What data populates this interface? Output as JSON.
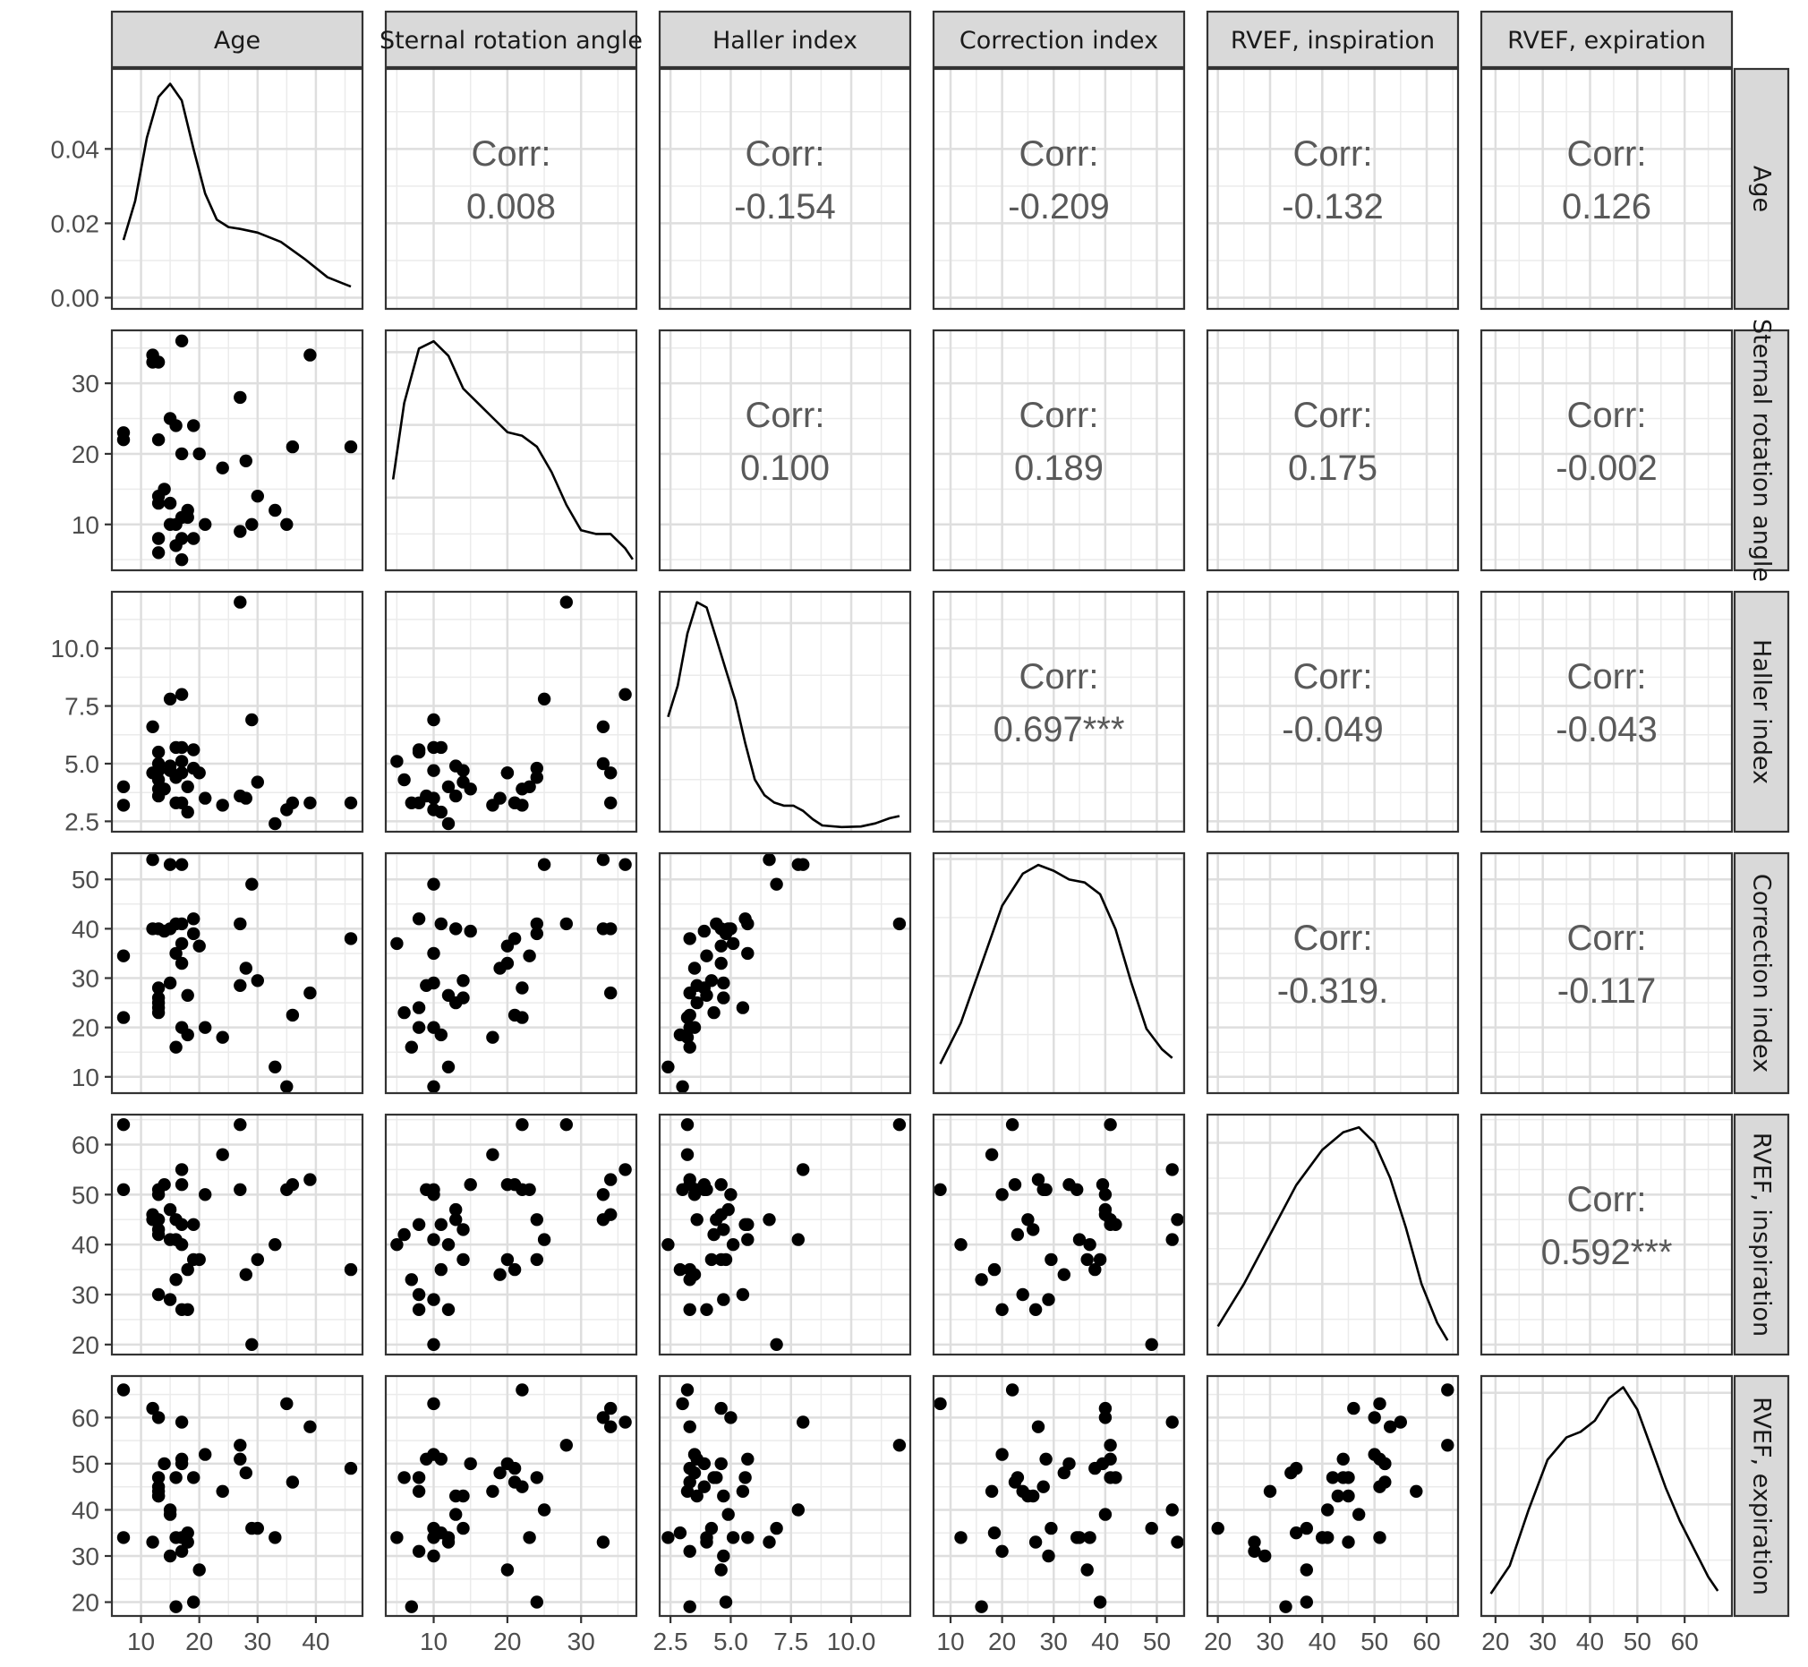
{
  "chart_data": {
    "type": "scatter",
    "variables": [
      "Age",
      "Sternal rotation angle",
      "Haller index",
      "Correction index",
      "RVEF, inspiration",
      "RVEF, expiration"
    ],
    "diagonal_type": "density",
    "upper_type": "correlation",
    "lower_type": "scatter",
    "corr_label": "Corr:",
    "correlations": [
      [
        "",
        "0.008",
        "-0.154",
        "-0.209",
        "-0.132",
        "0.126"
      ],
      [
        "",
        "",
        "0.100",
        "0.189",
        "0.175",
        "-0.002"
      ],
      [
        "",
        "",
        "",
        "0.697***",
        "-0.049",
        "-0.043"
      ],
      [
        "",
        "",
        "",
        "",
        "-0.319.",
        "-0.117"
      ],
      [
        "",
        "",
        "",
        "",
        "",
        "0.592***"
      ],
      [
        "",
        "",
        "",
        "",
        "",
        ""
      ]
    ],
    "x_ranges": [
      [
        5.0,
        48.0
      ],
      [
        3.5,
        37.5
      ],
      [
        2.05,
        12.45
      ],
      [
        6.7,
        55.3
      ],
      [
        18.0,
        66.0
      ],
      [
        17.0,
        70.0
      ]
    ],
    "y_ranges": [
      [
        -0.003,
        0.0615
      ],
      [
        3.5,
        37.5
      ],
      [
        2.05,
        12.45
      ],
      [
        6.7,
        55.3
      ],
      [
        18.0,
        66.0
      ],
      [
        17.0,
        69.0
      ]
    ],
    "x_ticks": [
      [
        "10",
        "20",
        "30",
        "40"
      ],
      [
        "10",
        "20",
        "30"
      ],
      [
        "2.5",
        "5.0",
        "7.5",
        "10.0"
      ],
      [
        "10",
        "20",
        "30",
        "40",
        "50"
      ],
      [
        "20",
        "30",
        "40",
        "50",
        "60"
      ],
      [
        "20",
        "30",
        "40",
        "50",
        "60"
      ]
    ],
    "x_tick_values": [
      [
        10,
        20,
        30,
        40
      ],
      [
        10,
        20,
        30
      ],
      [
        2.5,
        5.0,
        7.5,
        10.0
      ],
      [
        10,
        20,
        30,
        40,
        50
      ],
      [
        20,
        30,
        40,
        50,
        60
      ],
      [
        20,
        30,
        40,
        50,
        60
      ]
    ],
    "y_ticks": [
      [
        "0.00",
        "0.02",
        "0.04"
      ],
      [
        "10",
        "20",
        "30"
      ],
      [
        "2.5",
        "5.0",
        "7.5",
        "10.0"
      ],
      [
        "10",
        "20",
        "30",
        "40",
        "50"
      ],
      [
        "20",
        "30",
        "40",
        "50",
        "60"
      ],
      [
        "20",
        "30",
        "40",
        "50",
        "60"
      ]
    ],
    "y_tick_values": [
      [
        0.0,
        0.02,
        0.04
      ],
      [
        10,
        20,
        30
      ],
      [
        2.5,
        5.0,
        7.5,
        10.0
      ],
      [
        10,
        20,
        30,
        40,
        50
      ],
      [
        20,
        30,
        40,
        50,
        60
      ],
      [
        20,
        30,
        40,
        50,
        60
      ]
    ],
    "density_curves": [
      [
        [
          7,
          0.0155
        ],
        [
          9,
          0.026
        ],
        [
          11,
          0.043
        ],
        [
          13,
          0.054
        ],
        [
          15,
          0.0575
        ],
        [
          17,
          0.053
        ],
        [
          19,
          0.04
        ],
        [
          21,
          0.028
        ],
        [
          23,
          0.021
        ],
        [
          25,
          0.019
        ],
        [
          27,
          0.0185
        ],
        [
          30,
          0.0175
        ],
        [
          34,
          0.015
        ],
        [
          38,
          0.0105
        ],
        [
          42,
          0.0055
        ],
        [
          46,
          0.003
        ]
      ],
      [
        [
          4.5,
          0.125
        ],
        [
          6,
          0.23
        ],
        [
          8,
          0.305
        ],
        [
          10,
          0.315
        ],
        [
          12,
          0.295
        ],
        [
          14,
          0.25
        ],
        [
          16,
          0.23
        ],
        [
          18,
          0.21
        ],
        [
          20,
          0.19
        ],
        [
          22,
          0.185
        ],
        [
          24,
          0.17
        ],
        [
          26,
          0.135
        ],
        [
          28,
          0.09
        ],
        [
          30,
          0.055
        ],
        [
          32,
          0.05
        ],
        [
          34,
          0.05
        ],
        [
          36,
          0.03
        ],
        [
          37,
          0.015
        ]
      ],
      [
        [
          2.4,
          0.11
        ],
        [
          2.8,
          0.14
        ],
        [
          3.2,
          0.19
        ],
        [
          3.6,
          0.22
        ],
        [
          4.0,
          0.215
        ],
        [
          4.4,
          0.185
        ],
        [
          4.8,
          0.155
        ],
        [
          5.2,
          0.125
        ],
        [
          5.6,
          0.085
        ],
        [
          6.0,
          0.05
        ],
        [
          6.4,
          0.035
        ],
        [
          6.8,
          0.028
        ],
        [
          7.2,
          0.025
        ],
        [
          7.6,
          0.025
        ],
        [
          8.0,
          0.02
        ],
        [
          8.4,
          0.012
        ],
        [
          8.8,
          0.006
        ],
        [
          9.6,
          0.0045
        ],
        [
          10.4,
          0.005
        ],
        [
          11.0,
          0.008
        ],
        [
          11.6,
          0.013
        ],
        [
          12.0,
          0.015
        ]
      ],
      [
        [
          8,
          0.005
        ],
        [
          12,
          0.012
        ],
        [
          16,
          0.022
        ],
        [
          20,
          0.032
        ],
        [
          24,
          0.0375
        ],
        [
          27,
          0.039
        ],
        [
          30,
          0.038
        ],
        [
          33,
          0.0365
        ],
        [
          36,
          0.036
        ],
        [
          39,
          0.034
        ],
        [
          42,
          0.028
        ],
        [
          45,
          0.019
        ],
        [
          48,
          0.011
        ],
        [
          51,
          0.0075
        ],
        [
          53,
          0.006
        ]
      ],
      [
        [
          20,
          0.004
        ],
        [
          25,
          0.01
        ],
        [
          30,
          0.017
        ],
        [
          35,
          0.024
        ],
        [
          40,
          0.029
        ],
        [
          44,
          0.0315
        ],
        [
          47,
          0.0322
        ],
        [
          50,
          0.03
        ],
        [
          53,
          0.025
        ],
        [
          56,
          0.018
        ],
        [
          59,
          0.01
        ],
        [
          62,
          0.0045
        ],
        [
          64,
          0.002
        ]
      ],
      [
        [
          19,
          0.004
        ],
        [
          23,
          0.009
        ],
        [
          27,
          0.019
        ],
        [
          31,
          0.028
        ],
        [
          35,
          0.032
        ],
        [
          38,
          0.033
        ],
        [
          41,
          0.035
        ],
        [
          44,
          0.039
        ],
        [
          47,
          0.041
        ],
        [
          50,
          0.037
        ],
        [
          53,
          0.03
        ],
        [
          56,
          0.023
        ],
        [
          59,
          0.017
        ],
        [
          62,
          0.012
        ],
        [
          65,
          0.007
        ],
        [
          67,
          0.0045
        ]
      ]
    ],
    "density_y_ranges": [
      [
        -0.003,
        0.0615
      ],
      [
        0.0,
        0.33
      ],
      [
        0.0,
        0.23
      ],
      [
        0.0,
        0.041
      ],
      [
        0.0,
        0.034
      ],
      [
        0.0,
        0.043
      ]
    ],
    "observations": [
      [
        7,
        23,
        4.0,
        34.5,
        51,
        34
      ],
      [
        7,
        22,
        3.2,
        22,
        64,
        66
      ],
      [
        12,
        34,
        4.6,
        40,
        46,
        62
      ],
      [
        12,
        33,
        6.6,
        54,
        45,
        33
      ],
      [
        13,
        33,
        5.0,
        40,
        50,
        60
      ],
      [
        13,
        22,
        3.9,
        28,
        51,
        45
      ],
      [
        13,
        14,
        4.7,
        26,
        43,
        43
      ],
      [
        13,
        13,
        3.6,
        25,
        45,
        43
      ],
      [
        13,
        8,
        5.5,
        24,
        30,
        44
      ],
      [
        13,
        6,
        4.3,
        23,
        42,
        47
      ],
      [
        14,
        15,
        3.9,
        39.5,
        52,
        50
      ],
      [
        15,
        25,
        7.8,
        53,
        41,
        40
      ],
      [
        15,
        10,
        4.7,
        29,
        29,
        30
      ],
      [
        15,
        13,
        4.9,
        40,
        47,
        39
      ],
      [
        16,
        24,
        4.4,
        41,
        45,
        47
      ],
      [
        16,
        10,
        5.7,
        35,
        41,
        34
      ],
      [
        16,
        7,
        3.3,
        16,
        33,
        19
      ],
      [
        17,
        36,
        8.0,
        53,
        55,
        59
      ],
      [
        17,
        20,
        4.6,
        33,
        52,
        50
      ],
      [
        17,
        11,
        5.7,
        41,
        44,
        51
      ],
      [
        17,
        8,
        3.3,
        20,
        27,
        31
      ],
      [
        17,
        5,
        5.1,
        37,
        40,
        34
      ],
      [
        18,
        12,
        4.0,
        26.5,
        27,
        33
      ],
      [
        18,
        11,
        2.9,
        18.5,
        35,
        35
      ],
      [
        19,
        8,
        5.6,
        42,
        44,
        47
      ],
      [
        19,
        24,
        4.8,
        39,
        37,
        20
      ],
      [
        20,
        20,
        4.6,
        36.5,
        37,
        27
      ],
      [
        21,
        10,
        3.5,
        20,
        50,
        52
      ],
      [
        24,
        18,
        3.2,
        18,
        58,
        44
      ],
      [
        27,
        28,
        12.0,
        41,
        64,
        54
      ],
      [
        27,
        9,
        3.6,
        28.5,
        51,
        51
      ],
      [
        28,
        19,
        3.5,
        32,
        34,
        48
      ],
      [
        29,
        10,
        6.9,
        49,
        20,
        36
      ],
      [
        30,
        14,
        4.2,
        29.5,
        37,
        36
      ],
      [
        33,
        12,
        2.4,
        12,
        40,
        34
      ],
      [
        35,
        10,
        3.0,
        8,
        51,
        63
      ],
      [
        36,
        21,
        3.3,
        22.5,
        52,
        46
      ],
      [
        39,
        34,
        3.3,
        27,
        53,
        58
      ],
      [
        46,
        21,
        3.3,
        38,
        35,
        49
      ]
    ]
  }
}
